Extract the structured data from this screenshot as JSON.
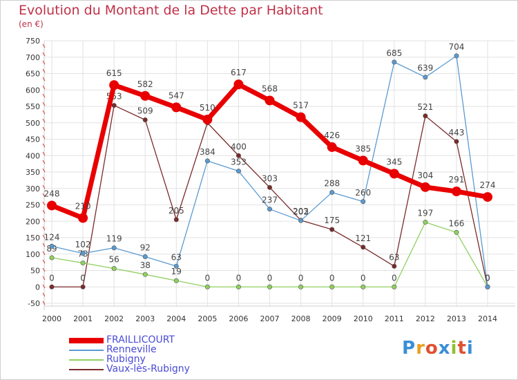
{
  "title": "Evolution du Montant de la Dette par Habitant",
  "unit": "(en €)",
  "brand": {
    "text": "Proxiti",
    "letter_colors": [
      "#3a8ed8",
      "#e8a020",
      "#e05030",
      "#3a8ed8",
      "#90c030",
      "#e05030",
      "#3a8ed8"
    ]
  },
  "chart_data": {
    "type": "line",
    "x": [
      2000,
      2001,
      2002,
      2003,
      2004,
      2005,
      2006,
      2007,
      2008,
      2009,
      2010,
      2011,
      2012,
      2013,
      2014
    ],
    "ylim": [
      -50,
      750
    ],
    "yticks": [
      -50,
      0,
      50,
      100,
      150,
      200,
      250,
      300,
      350,
      400,
      450,
      500,
      550,
      600,
      650,
      700,
      750
    ],
    "grid": true,
    "legend_position": "bottom-left",
    "series": [
      {
        "name": "Vaux-lès-Rubigny",
        "color": "#7a2a2a",
        "values": [
          0,
          0,
          553,
          509,
          205,
          500,
          400,
          303,
          203,
          175,
          121,
          63,
          521,
          443,
          0
        ],
        "labels": [
          "0",
          "0",
          "553",
          "509",
          "205",
          "",
          "400",
          "303",
          "203",
          "175",
          "121",
          "63",
          "521",
          "443",
          "0"
        ]
      },
      {
        "name": "Rubigny",
        "color": "#90d060",
        "values": [
          89,
          73,
          56,
          38,
          19,
          0,
          0,
          0,
          0,
          0,
          0,
          0,
          197,
          166,
          0
        ],
        "labels": [
          "89",
          "73",
          "56",
          "38",
          "19",
          "0",
          "0",
          "0",
          "0",
          "0",
          "0",
          "0",
          "197",
          "166",
          ""
        ]
      },
      {
        "name": "Renneville",
        "color": "#5a9ad0",
        "values": [
          124,
          102,
          119,
          92,
          63,
          384,
          353,
          237,
          202,
          288,
          260,
          685,
          639,
          704,
          0
        ],
        "labels": [
          "124",
          "102",
          "119",
          "92",
          "63",
          "384",
          "353",
          "237",
          "202",
          "288",
          "260",
          "685",
          "639",
          "704",
          "0"
        ]
      },
      {
        "name": "FRAILLICOURT",
        "color": "#e80000",
        "values": [
          248,
          210,
          615,
          582,
          547,
          510,
          617,
          568,
          517,
          426,
          385,
          345,
          304,
          291,
          274
        ],
        "labels": [
          "248",
          "210",
          "615",
          "582",
          "547",
          "510",
          "617",
          "568",
          "517",
          "426",
          "385",
          "345",
          "304",
          "291",
          "274"
        ]
      }
    ],
    "legend_order": [
      "FRAILLICOURT",
      "Renneville",
      "Rubigny",
      "Vaux-lès-Rubigny"
    ]
  }
}
